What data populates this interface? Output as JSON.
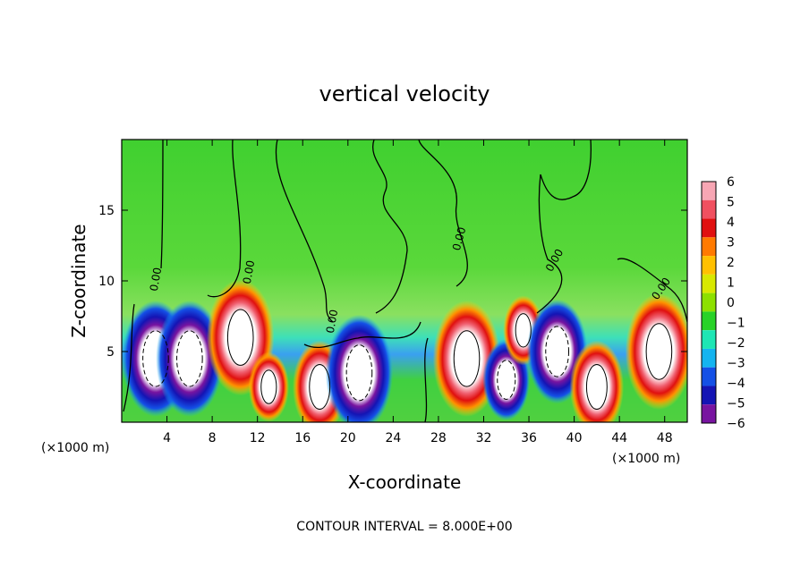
{
  "chart_data": {
    "type": "heatmap",
    "title": "vertical velocity",
    "xlabel": "X-coordinate",
    "ylabel": "Z-coordinate",
    "x_unit_label": "(×1000 m)",
    "x_ticks": [
      4,
      8,
      12,
      16,
      20,
      24,
      28,
      32,
      36,
      40,
      44,
      48
    ],
    "y_ticks": [
      5,
      10,
      15
    ],
    "xlim": [
      0,
      50
    ],
    "ylim": [
      0,
      20
    ],
    "colorbar": {
      "ticks": [
        6,
        5,
        4,
        3,
        2,
        1,
        0,
        -1,
        -2,
        -3,
        -4,
        -5,
        -6
      ],
      "colors": [
        "#f7a6b4",
        "#f05060",
        "#e01010",
        "#ff7a00",
        "#ffc000",
        "#d8e800",
        "#8de000",
        "#28d228",
        "#1ee6b4",
        "#14b4f0",
        "#1450e6",
        "#1414b4",
        "#7814a0"
      ]
    },
    "contour_labels": [
      "0.00",
      "0.00",
      "0.00",
      "0.00",
      "0.00",
      "0.00"
    ],
    "note": "CONTOUR INTERVAL = 8.000E+00",
    "cells": [
      {
        "x": 3,
        "z": 4.5,
        "w": 1
      },
      {
        "x": 6,
        "z": 4.5,
        "w": 1
      },
      {
        "x": 10.5,
        "z": 6,
        "w": 1
      },
      {
        "x": 13,
        "z": 2.5,
        "w": 0.6
      },
      {
        "x": 17.5,
        "z": 2.5,
        "w": 0.8
      },
      {
        "x": 21,
        "z": 3.5,
        "w": 1
      },
      {
        "x": 30.5,
        "z": 4.5,
        "w": 1
      },
      {
        "x": 34,
        "z": 3,
        "w": 0.7
      },
      {
        "x": 35.5,
        "z": 6.5,
        "w": 0.6
      },
      {
        "x": 38.5,
        "z": 5,
        "w": 0.9
      },
      {
        "x": 42,
        "z": 2.5,
        "w": 0.8
      },
      {
        "x": 47.5,
        "z": 5,
        "w": 1
      }
    ]
  }
}
